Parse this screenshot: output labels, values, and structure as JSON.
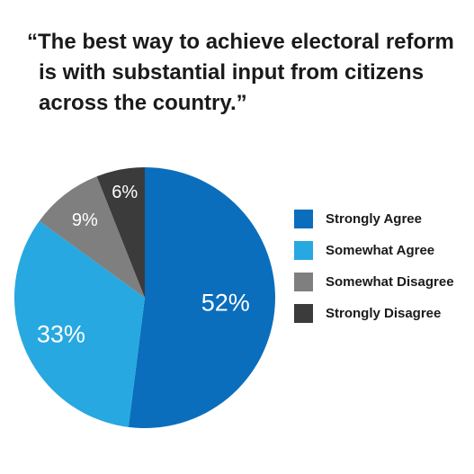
{
  "title_lines": [
    "“The best way to achieve electoral reform",
    "is with substantial input from citizens",
    "across the country.”"
  ],
  "chart_data": {
    "type": "pie",
    "title": "“The best way to achieve electoral reform is with substantial input from citizens across the country.”",
    "legend_position": "right",
    "slices": [
      {
        "name": "Strongly Agree",
        "value": 52,
        "label": "52%",
        "color": "#0a6ebd"
      },
      {
        "name": "Somewhat Agree",
        "value": 33,
        "label": "33%",
        "color": "#27a8e0"
      },
      {
        "name": "Somewhat Disagree",
        "value": 9,
        "label": "9%",
        "color": "#7f7f7f"
      },
      {
        "name": "Strongly Disagree",
        "value": 6,
        "label": "6%",
        "color": "#3b3b3b"
      }
    ]
  }
}
